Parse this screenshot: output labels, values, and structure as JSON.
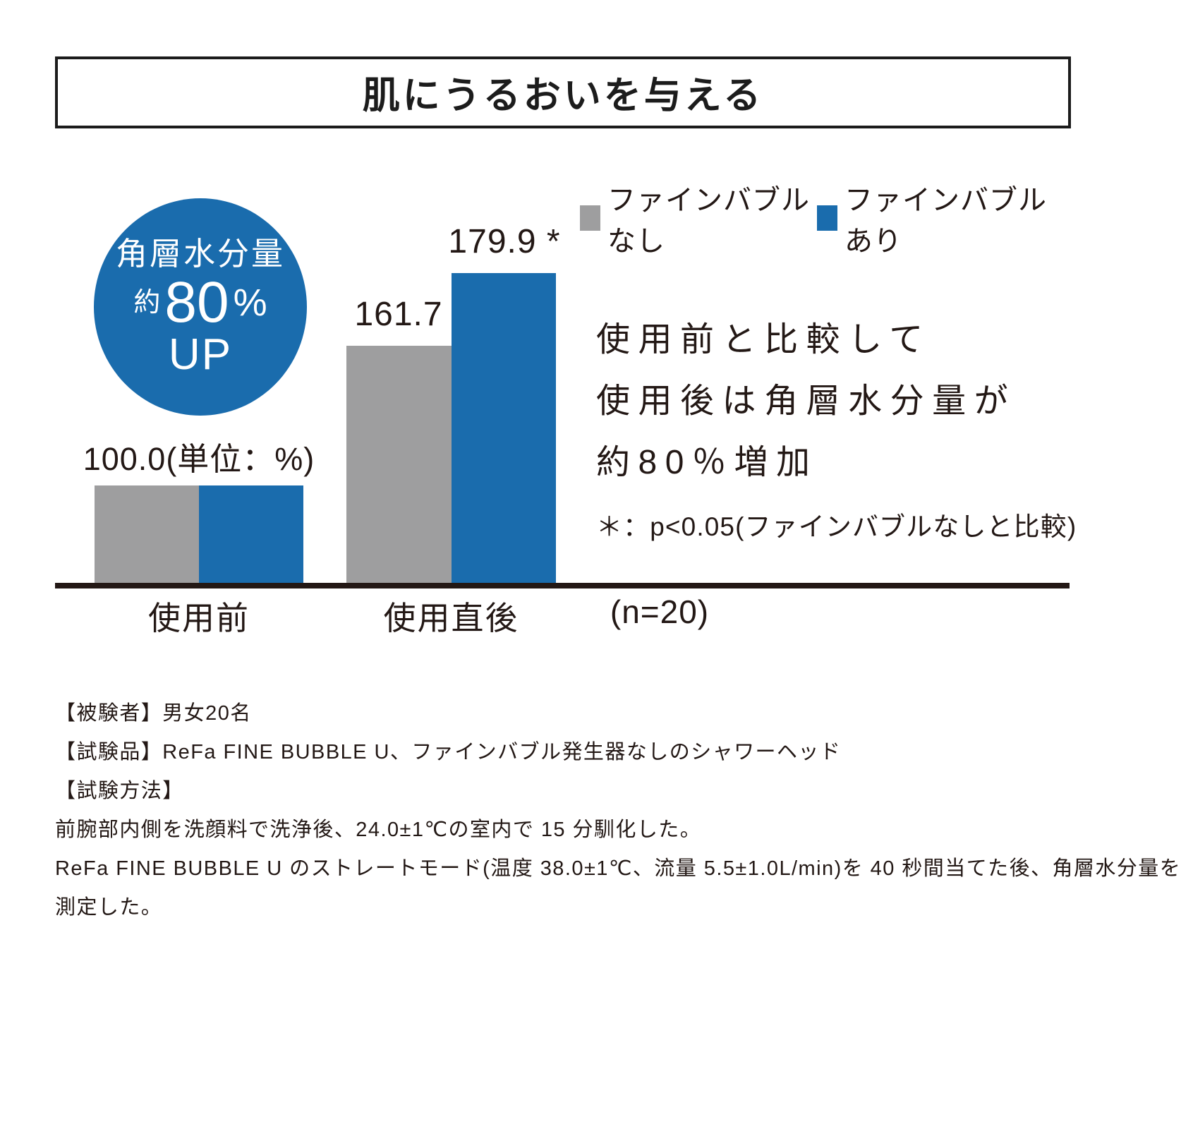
{
  "header": {
    "title": "肌にうるおいを与える"
  },
  "badge": {
    "line1": "角層水分量",
    "approx": "約",
    "value": "80",
    "percent_sign": "%",
    "up": "UP"
  },
  "chart_data": {
    "type": "bar",
    "title": "肌にうるおいを与える",
    "unit_note": "(単位：%)",
    "categories": [
      "使用前",
      "使用直後"
    ],
    "series": [
      {
        "name": "ファインバブルなし",
        "color": "#9e9e9f",
        "values": [
          100.0,
          161.7
        ]
      },
      {
        "name": "ファインバブルあり",
        "color": "#1a6cad",
        "values": [
          100.0,
          179.9
        ]
      }
    ],
    "bar_labels": {
      "group1": "100.0(単位：%)",
      "group2_none": "161.7",
      "group2_with": "179.9 *"
    },
    "sample_size": "(n=20)",
    "significance_note": "＊：p<0.05(ファインバブルなしと比較)",
    "legend_position": "top-right",
    "grid": false,
    "not_to_scale": true,
    "ylabel": "",
    "xlabel": ""
  },
  "message": {
    "lines": [
      "使用前と比較して",
      "使用後は角層水分量が",
      "約80％増加"
    ]
  },
  "footnotes": {
    "lines": [
      "【被験者】男女20名",
      "【試験品】ReFa FINE BUBBLE U、ファインバブル発生器なしのシャワーヘッド",
      "【試験方法】",
      "前腕部内側を洗顔料で洗浄後、24.0±1℃の室内で 15 分馴化した。",
      "ReFa FINE BUBBLE U のストレートモード(温度 38.0±1℃、流量 5.5±1.0L/min)を 40 秒間当てた後、角層水分量を",
      "測定した。"
    ]
  },
  "colors": {
    "fine_bubble_with": "#1a6cad",
    "fine_bubble_without": "#9e9e9f",
    "text": "#231815",
    "axis": "#231815"
  }
}
